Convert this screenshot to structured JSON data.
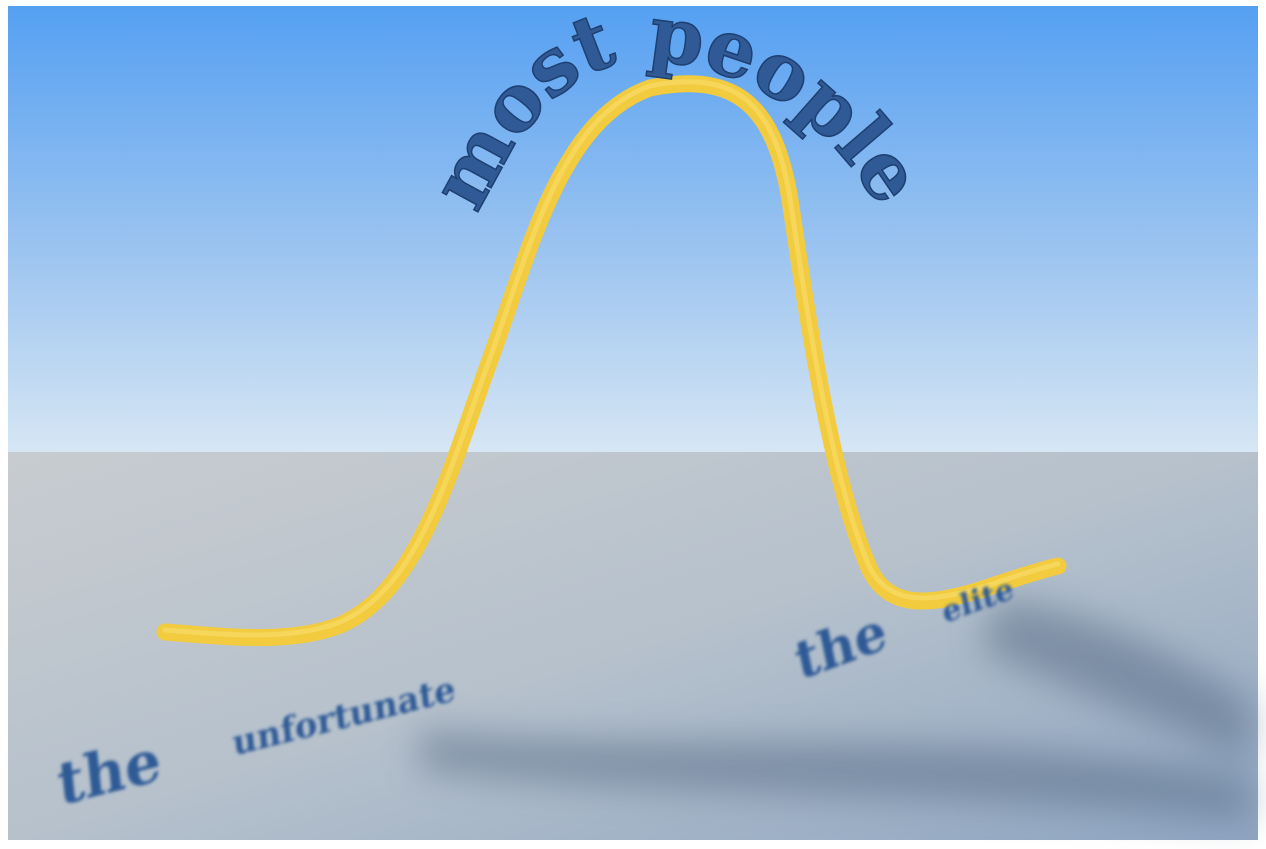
{
  "peak_label": "most people",
  "labels": [
    {
      "lead": "the",
      "word": "unfortunate"
    },
    {
      "lead": "the",
      "word": "elite"
    }
  ]
}
